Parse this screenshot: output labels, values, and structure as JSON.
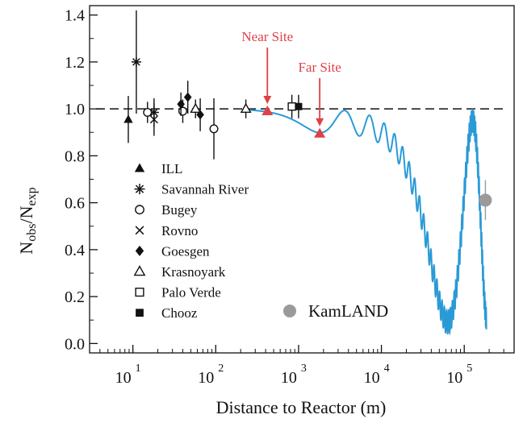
{
  "chart_data": {
    "type": "scatter",
    "xlabel": "Distance to Reactor (m)",
    "ylabel": "Nobs/Nexp",
    "x_scale": "log",
    "xlim": [
      3,
      400000
    ],
    "ylim": [
      -0.04,
      1.44
    ],
    "x_ticks": [
      {
        "value": 10,
        "base": "10",
        "exp": "1"
      },
      {
        "value": 100,
        "base": "10",
        "exp": "2"
      },
      {
        "value": 1000,
        "base": "10",
        "exp": "3"
      },
      {
        "value": 10000,
        "base": "10",
        "exp": "4"
      },
      {
        "value": 100000,
        "base": "10",
        "exp": "5"
      }
    ],
    "y_ticks": [
      {
        "value": 0.0,
        "label": "0.0"
      },
      {
        "value": 0.2,
        "label": "0.2"
      },
      {
        "value": 0.4,
        "label": "0.4"
      },
      {
        "value": 0.6,
        "label": "0.6"
      },
      {
        "value": 0.8,
        "label": "0.8"
      },
      {
        "value": 1.0,
        "label": "1.0"
      },
      {
        "value": 1.2,
        "label": "1.2"
      },
      {
        "value": 1.4,
        "label": "1.4"
      }
    ],
    "reference_line": {
      "y": 1.0,
      "style": "dashed"
    },
    "experiments": [
      {
        "name": "ILL",
        "marker": "filled-triangle",
        "points": [
          {
            "x": 8.8,
            "y": 0.955,
            "err": 0.1
          }
        ]
      },
      {
        "name": "Savannah River",
        "marker": "asterisk",
        "points": [
          {
            "x": 11,
            "y": 1.2,
            "err": 0.22
          },
          {
            "x": 18,
            "y": 0.985,
            "err": 0.06
          }
        ]
      },
      {
        "name": "Bugey",
        "marker": "open-circle",
        "points": [
          {
            "x": 15,
            "y": 0.985,
            "err": 0.045
          },
          {
            "x": 40,
            "y": 0.99,
            "err": 0.05
          },
          {
            "x": 95,
            "y": 0.915,
            "err": 0.13
          }
        ]
      },
      {
        "name": "Rovno",
        "marker": "cross",
        "points": [
          {
            "x": 18,
            "y": 0.955,
            "err": 0.07
          }
        ]
      },
      {
        "name": "Goesgen",
        "marker": "filled-diamond",
        "points": [
          {
            "x": 38,
            "y": 1.02,
            "err": 0.05
          },
          {
            "x": 46,
            "y": 1.05,
            "err": 0.07
          },
          {
            "x": 65,
            "y": 0.975,
            "err": 0.07
          }
        ]
      },
      {
        "name": "Krasnoyark",
        "marker": "open-triangle",
        "points": [
          {
            "x": 57,
            "y": 1.0,
            "err": 0.04
          },
          {
            "x": 231,
            "y": 1.0,
            "err": 0.04
          }
        ]
      },
      {
        "name": "Palo Verde",
        "marker": "open-square",
        "points": [
          {
            "x": 830,
            "y": 1.01,
            "err": 0.05
          }
        ]
      },
      {
        "name": "Chooz",
        "marker": "filled-square",
        "points": [
          {
            "x": 1000,
            "y": 1.01,
            "err": 0.05
          }
        ]
      },
      {
        "name": "KamLAND",
        "marker": "grey-circle",
        "points": [
          {
            "x": 180000,
            "y": 0.611,
            "err": 0.085
          }
        ]
      }
    ],
    "sites": [
      {
        "label": "Near Site",
        "x": 420,
        "y": 0.99
      },
      {
        "label": "Far Site",
        "x": 1800,
        "y": 0.895
      }
    ],
    "oscillation_curve": {
      "color": "#2a9ad6",
      "x_range": [
        240,
        185000
      ],
      "sin2_2theta13": 0.1,
      "theta13_scale_m": 1800,
      "sin2_2theta12": 0.86,
      "theta12_scale_m": 63000
    }
  },
  "legend": [
    {
      "label": "ILL",
      "marker": "filled-triangle"
    },
    {
      "label": "Savannah River",
      "marker": "asterisk"
    },
    {
      "label": "Bugey",
      "marker": "open-circle"
    },
    {
      "label": "Rovno",
      "marker": "cross"
    },
    {
      "label": "Goesgen",
      "marker": "filled-diamond"
    },
    {
      "label": "Krasnoyark",
      "marker": "open-triangle"
    },
    {
      "label": "Palo Verde",
      "marker": "open-square"
    },
    {
      "label": "Chooz",
      "marker": "filled-square"
    }
  ],
  "kamland_label": "KamLAND",
  "colors": {
    "site": "#e04048",
    "curve": "#2a9ad6",
    "kamland": "#9a9a9a",
    "ink": "#111111"
  }
}
